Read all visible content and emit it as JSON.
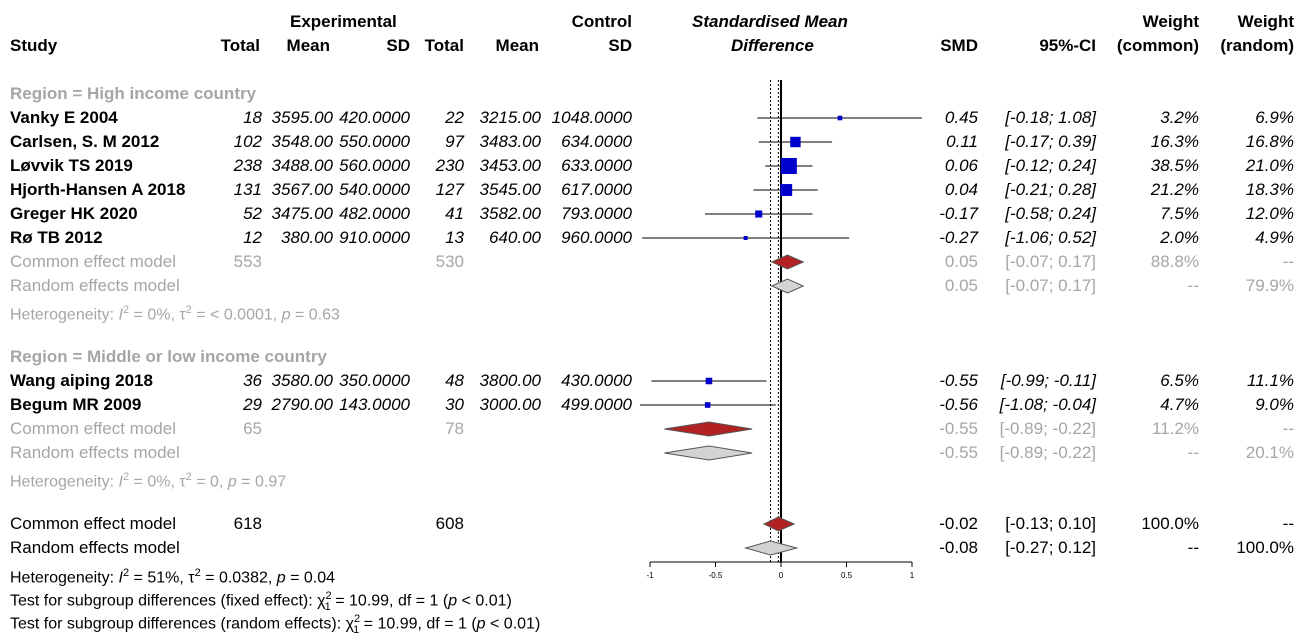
{
  "headers": {
    "study": "Study",
    "experimental": "Experimental",
    "control": "Control",
    "total": "Total",
    "mean": "Mean",
    "sd": "SD",
    "smd_title_1": "Standardised Mean",
    "smd_title_2": "Difference",
    "smd": "SMD",
    "ci": "95%-CI",
    "weight": "Weight",
    "weight_common": "(common)",
    "weight_random": "(random)"
  },
  "groups": [
    {
      "label": "Region = High income country",
      "studies": [
        {
          "name": "Vanky E 2004",
          "e_total": "18",
          "e_mean": "3595.00",
          "e_sd": "420.0000",
          "c_total": "22",
          "c_mean": "3215.00",
          "c_sd": "1048.0000",
          "smd": "0.45",
          "ci": "[-0.18; 1.08]",
          "w_common": "3.2%",
          "w_random": "6.9%"
        },
        {
          "name": "Carlsen, S. M 2012",
          "e_total": "102",
          "e_mean": "3548.00",
          "e_sd": "550.0000",
          "c_total": "97",
          "c_mean": "3483.00",
          "c_sd": "634.0000",
          "smd": "0.11",
          "ci": "[-0.17; 0.39]",
          "w_common": "16.3%",
          "w_random": "16.8%"
        },
        {
          "name": "Løvvik TS 2019",
          "e_total": "238",
          "e_mean": "3488.00",
          "e_sd": "560.0000",
          "c_total": "230",
          "c_mean": "3453.00",
          "c_sd": "633.0000",
          "smd": "0.06",
          "ci": "[-0.12; 0.24]",
          "w_common": "38.5%",
          "w_random": "21.0%"
        },
        {
          "name": "Hjorth-Hansen A 2018",
          "e_total": "131",
          "e_mean": "3567.00",
          "e_sd": "540.0000",
          "c_total": "127",
          "c_mean": "3545.00",
          "c_sd": "617.0000",
          "smd": "0.04",
          "ci": "[-0.21; 0.28]",
          "w_common": "21.2%",
          "w_random": "18.3%"
        },
        {
          "name": "Greger HK 2020",
          "e_total": "52",
          "e_mean": "3475.00",
          "e_sd": "482.0000",
          "c_total": "41",
          "c_mean": "3582.00",
          "c_sd": "793.0000",
          "smd": "-0.17",
          "ci": "[-0.58; 0.24]",
          "w_common": "7.5%",
          "w_random": "12.0%"
        },
        {
          "name": "Rø TB 2012",
          "e_total": "12",
          "e_mean": "380.00",
          "e_sd": "910.0000",
          "c_total": "13",
          "c_mean": "640.00",
          "c_sd": "960.0000",
          "smd": "-0.27",
          "ci": "[-1.06; 0.52]",
          "w_common": "2.0%",
          "w_random": "4.9%"
        }
      ],
      "common": {
        "label": "Common effect model",
        "e_total": "553",
        "c_total": "530",
        "smd": "0.05",
        "ci": "[-0.07; 0.17]",
        "w_common": "88.8%",
        "w_random": "--"
      },
      "random": {
        "label": "Random effects model",
        "smd": "0.05",
        "ci": "[-0.07; 0.17]",
        "w_common": "--",
        "w_random": "79.9%"
      },
      "heterogeneity": {
        "prefix": "Heterogeneity: ",
        "i2": " = 0%, ",
        "tau2": " = < 0.0001, ",
        "p": " = 0.63"
      }
    },
    {
      "label": "Region = Middle or low income country",
      "studies": [
        {
          "name": "Wang aiping 2018",
          "e_total": "36",
          "e_mean": "3580.00",
          "e_sd": "350.0000",
          "c_total": "48",
          "c_mean": "3800.00",
          "c_sd": "430.0000",
          "smd": "-0.55",
          "ci": "[-0.99; -0.11]",
          "w_common": "6.5%",
          "w_random": "11.1%"
        },
        {
          "name": "Begum MR 2009",
          "e_total": "29",
          "e_mean": "2790.00",
          "e_sd": "143.0000",
          "c_total": "30",
          "c_mean": "3000.00",
          "c_sd": "499.0000",
          "smd": "-0.56",
          "ci": "[-1.08; -0.04]",
          "w_common": "4.7%",
          "w_random": "9.0%"
        }
      ],
      "common": {
        "label": "Common effect model",
        "e_total": "65",
        "c_total": "78",
        "smd": "-0.55",
        "ci": "[-0.89; -0.22]",
        "w_common": "11.2%",
        "w_random": "--"
      },
      "random": {
        "label": "Random effects model",
        "smd": "-0.55",
        "ci": "[-0.89; -0.22]",
        "w_common": "--",
        "w_random": "20.1%"
      },
      "heterogeneity": {
        "prefix": "Heterogeneity: ",
        "i2": " = 0%, ",
        "tau2": " = 0, ",
        "p": " = 0.97"
      }
    }
  ],
  "overall": {
    "common": {
      "label": "Common effect model",
      "e_total": "618",
      "c_total": "608",
      "smd": "-0.02",
      "ci": "[-0.13; 0.10]",
      "w_common": "100.0%",
      "w_random": "--"
    },
    "random": {
      "label": "Random effects model",
      "smd": "-0.08",
      "ci": "[-0.27; 0.12]",
      "w_common": "--",
      "w_random": "100.0%"
    },
    "heterogeneity": {
      "prefix": "Heterogeneity: ",
      "i2": " = 51%, ",
      "tau2": " = 0.0382, ",
      "p": " = 0.04"
    },
    "test_fixed": {
      "prefix": "Test for subgroup differences (fixed effect): ",
      "df": "1",
      "suffix": " = 10.99, df = 1 (",
      "p": " < 0.01)"
    },
    "test_random": {
      "prefix": "Test for subgroup differences (random effects): ",
      "df": "1",
      "suffix": " = 10.99, df = 1 (",
      "p": " < 0.01)"
    }
  },
  "symbols": {
    "i2": "I",
    "tau": "τ",
    "p": "p",
    "chi": "χ",
    "sq": "2"
  },
  "colors": {
    "square": "#0000cc",
    "common_diamond": "#b22222",
    "random_diamond": "#d3d3d3",
    "grey_text": "#a6a6a6"
  },
  "chart_data": {
    "type": "forest",
    "measure": "SMD",
    "xlim": [
      -1,
      1
    ],
    "xticks": [
      "-1",
      "-0.5",
      "0",
      "0.5",
      "1"
    ],
    "reference_line": 0,
    "studies": [
      {
        "name": "Vanky E 2004",
        "smd": 0.45,
        "lo": -0.18,
        "hi": 1.08,
        "w_common": 3.2
      },
      {
        "name": "Carlsen, S. M 2012",
        "smd": 0.11,
        "lo": -0.17,
        "hi": 0.39,
        "w_common": 16.3
      },
      {
        "name": "Løvvik TS 2019",
        "smd": 0.06,
        "lo": -0.12,
        "hi": 0.24,
        "w_common": 38.5
      },
      {
        "name": "Hjorth-Hansen A 2018",
        "smd": 0.04,
        "lo": -0.21,
        "hi": 0.28,
        "w_common": 21.2
      },
      {
        "name": "Greger HK 2020",
        "smd": -0.17,
        "lo": -0.58,
        "hi": 0.24,
        "w_common": 7.5
      },
      {
        "name": "Rø TB 2012",
        "smd": -0.27,
        "lo": -1.06,
        "hi": 0.52,
        "w_common": 2.0
      },
      {
        "name": "Wang aiping 2018",
        "smd": -0.55,
        "lo": -0.99,
        "hi": -0.11,
        "w_common": 6.5
      },
      {
        "name": "Begum MR 2009",
        "smd": -0.56,
        "lo": -1.08,
        "hi": -0.04,
        "w_common": 4.7
      }
    ],
    "pooled": [
      {
        "name": "High income common",
        "kind": "common",
        "smd": 0.05,
        "lo": -0.07,
        "hi": 0.17
      },
      {
        "name": "High income random",
        "kind": "random",
        "smd": 0.05,
        "lo": -0.07,
        "hi": 0.17
      },
      {
        "name": "Middle or low income common",
        "kind": "common",
        "smd": -0.55,
        "lo": -0.89,
        "hi": -0.22
      },
      {
        "name": "Middle or low income random",
        "kind": "random",
        "smd": -0.55,
        "lo": -0.89,
        "hi": -0.22
      },
      {
        "name": "Overall common",
        "kind": "common",
        "smd": -0.02,
        "lo": -0.13,
        "hi": 0.1
      },
      {
        "name": "Overall random",
        "kind": "random",
        "smd": -0.08,
        "lo": -0.27,
        "hi": 0.12
      }
    ]
  }
}
